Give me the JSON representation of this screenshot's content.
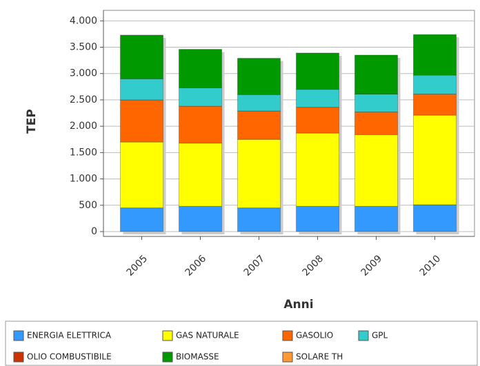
{
  "chart_data": {
    "type": "stacked_bar",
    "x_label": "Anni",
    "y_label": "TEP",
    "categories": [
      "2005",
      "2006",
      "2007",
      "2008",
      "2009",
      "2010"
    ],
    "series": [
      {
        "name": "ENERGIA ELETTRICA",
        "color": "#3399ff",
        "values": [
          450,
          480,
          450,
          480,
          480,
          510
        ]
      },
      {
        "name": "GAS NATURALE",
        "color": "#ffff00",
        "values": [
          1250,
          1200,
          1300,
          1390,
          1360,
          1700
        ]
      },
      {
        "name": "GASOLIO",
        "color": "#ff6600",
        "values": [
          800,
          700,
          540,
          490,
          430,
          400
        ]
      },
      {
        "name": "GPL",
        "color": "#33cccc",
        "values": [
          400,
          350,
          310,
          340,
          340,
          360
        ]
      },
      {
        "name": "OLIO COMBUSTIBILE",
        "color": "#cc3300",
        "values": [
          0,
          0,
          0,
          0,
          0,
          0
        ]
      },
      {
        "name": "BIOMASSE",
        "color": "#009900",
        "values": [
          830,
          730,
          690,
          690,
          740,
          770
        ]
      },
      {
        "name": "SOLARE TH",
        "color": "#ff9933",
        "values": [
          0,
          0,
          0,
          0,
          0,
          0
        ]
      }
    ],
    "ylim": [
      0,
      4200
    ],
    "yticks": [
      0,
      500,
      {
        "value": 1000,
        "label": "1.000"
      },
      {
        "value": 1500,
        "label": "1.500"
      },
      {
        "value": 2000,
        "label": "2.000"
      },
      {
        "value": 2500,
        "label": "2.500"
      },
      {
        "value": 3000,
        "label": "3.000"
      },
      {
        "value": 3500,
        "label": "3.500"
      },
      {
        "value": 4000,
        "label": "4.000"
      }
    ],
    "grid": true
  }
}
